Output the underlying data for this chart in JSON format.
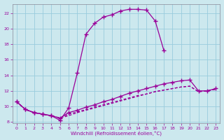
{
  "xlabel": "Windchill (Refroidissement éolien,°C)",
  "background_color": "#cce8ee",
  "grid_color": "#99ccdd",
  "line_color": "#990099",
  "xlim": [
    -0.5,
    23.5
  ],
  "ylim": [
    7.8,
    23.2
  ],
  "xticks": [
    0,
    1,
    2,
    3,
    4,
    5,
    6,
    7,
    8,
    9,
    10,
    11,
    12,
    13,
    14,
    15,
    16,
    17,
    18,
    19,
    20,
    21,
    22,
    23
  ],
  "yticks": [
    8,
    10,
    12,
    14,
    16,
    18,
    20,
    22
  ],
  "curve1_x": [
    0,
    1,
    2,
    3,
    4,
    5,
    6,
    7,
    8,
    9,
    10,
    11,
    12,
    13,
    14,
    15,
    16,
    17
  ],
  "curve1_y": [
    10.6,
    9.6,
    9.2,
    9.0,
    8.8,
    8.2,
    9.8,
    14.3,
    19.3,
    20.7,
    21.5,
    21.8,
    22.3,
    22.5,
    22.5,
    22.4,
    21.0,
    17.2
  ],
  "curve2_x": [
    0,
    1,
    2,
    3,
    4,
    5,
    6,
    7,
    8,
    9,
    10,
    11,
    12,
    13,
    14,
    15,
    16,
    17,
    18,
    19,
    20,
    21,
    22,
    23
  ],
  "curve2_y": [
    10.6,
    9.6,
    9.2,
    9.0,
    8.8,
    8.5,
    9.2,
    9.5,
    9.9,
    10.2,
    10.6,
    10.9,
    11.3,
    11.7,
    12.0,
    12.3,
    12.6,
    12.9,
    13.1,
    13.3,
    13.4,
    12.0,
    12.0,
    12.3
  ],
  "curve3_x": [
    0,
    1,
    2,
    3,
    4,
    5,
    6,
    7,
    8,
    9,
    10,
    11,
    12,
    13,
    14,
    15,
    16,
    17,
    18,
    19,
    20,
    21,
    22,
    23
  ],
  "curve3_y": [
    10.6,
    9.6,
    9.2,
    9.0,
    8.8,
    8.5,
    8.8,
    9.2,
    9.5,
    9.8,
    10.1,
    10.4,
    10.7,
    11.0,
    11.3,
    11.6,
    11.9,
    12.1,
    12.3,
    12.5,
    12.6,
    11.9,
    12.0,
    12.2
  ],
  "curve4_x": [
    0,
    1,
    2,
    3,
    4,
    5,
    6,
    7,
    8,
    9,
    10,
    11,
    12,
    13,
    14,
    15,
    16,
    17,
    18,
    19,
    20,
    21,
    22,
    23
  ],
  "curve4_y": [
    10.6,
    9.6,
    9.2,
    9.0,
    8.8,
    8.5,
    9.0,
    9.3,
    9.6,
    9.9,
    10.2,
    10.5,
    10.8,
    11.1,
    11.4,
    11.6,
    11.9,
    12.1,
    12.3,
    12.5,
    12.6,
    11.9,
    12.0,
    12.2
  ]
}
